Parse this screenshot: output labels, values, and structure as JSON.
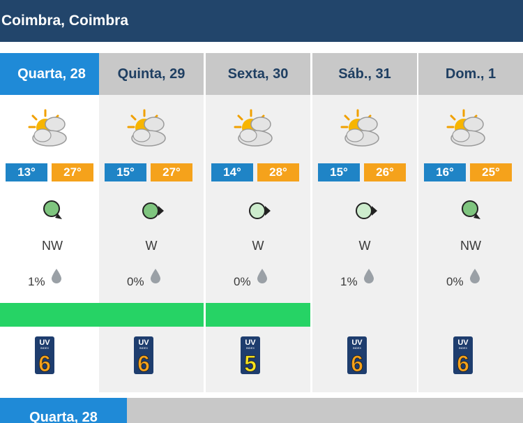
{
  "location": "Coimbra, Coimbra",
  "days": [
    {
      "label": "Quarta, 28",
      "icon": "partly-cloudy-icon",
      "tmin": "13°",
      "tmax": "27°",
      "wind": "NW",
      "wind_color": "#7fc57f",
      "rain": "1%",
      "green": true,
      "uv": "6",
      "uv_color": "#f5a21b"
    },
    {
      "label": "Quinta, 29",
      "icon": "partly-cloudy-icon",
      "tmin": "15°",
      "tmax": "27°",
      "wind": "W",
      "wind_color": "#7fc57f",
      "rain": "0%",
      "green": true,
      "uv": "6",
      "uv_color": "#f5a21b"
    },
    {
      "label": "Sexta, 30",
      "icon": "partly-cloudy-icon",
      "tmin": "14°",
      "tmax": "28°",
      "wind": "W",
      "wind_color": "#cdeccd",
      "rain": "0%",
      "green": true,
      "uv": "5",
      "uv_color": "#f7e21e"
    },
    {
      "label": "Sáb., 31",
      "icon": "partly-cloudy-icon",
      "tmin": "15°",
      "tmax": "26°",
      "wind": "W",
      "wind_color": "#cdeccd",
      "rain": "1%",
      "green": false,
      "uv": "6",
      "uv_color": "#f5a21b"
    },
    {
      "label": "Dom., 1",
      "icon": "partly-cloudy-icon",
      "tmin": "16°",
      "tmax": "25°",
      "wind": "NW",
      "wind_color": "#7fc57f",
      "rain": "0%",
      "green": false,
      "uv": "6",
      "uv_color": "#f5a21b"
    }
  ],
  "uv_label": "UV",
  "uv_sub": "INDEX",
  "bottom_tab": "Quarta, 28"
}
